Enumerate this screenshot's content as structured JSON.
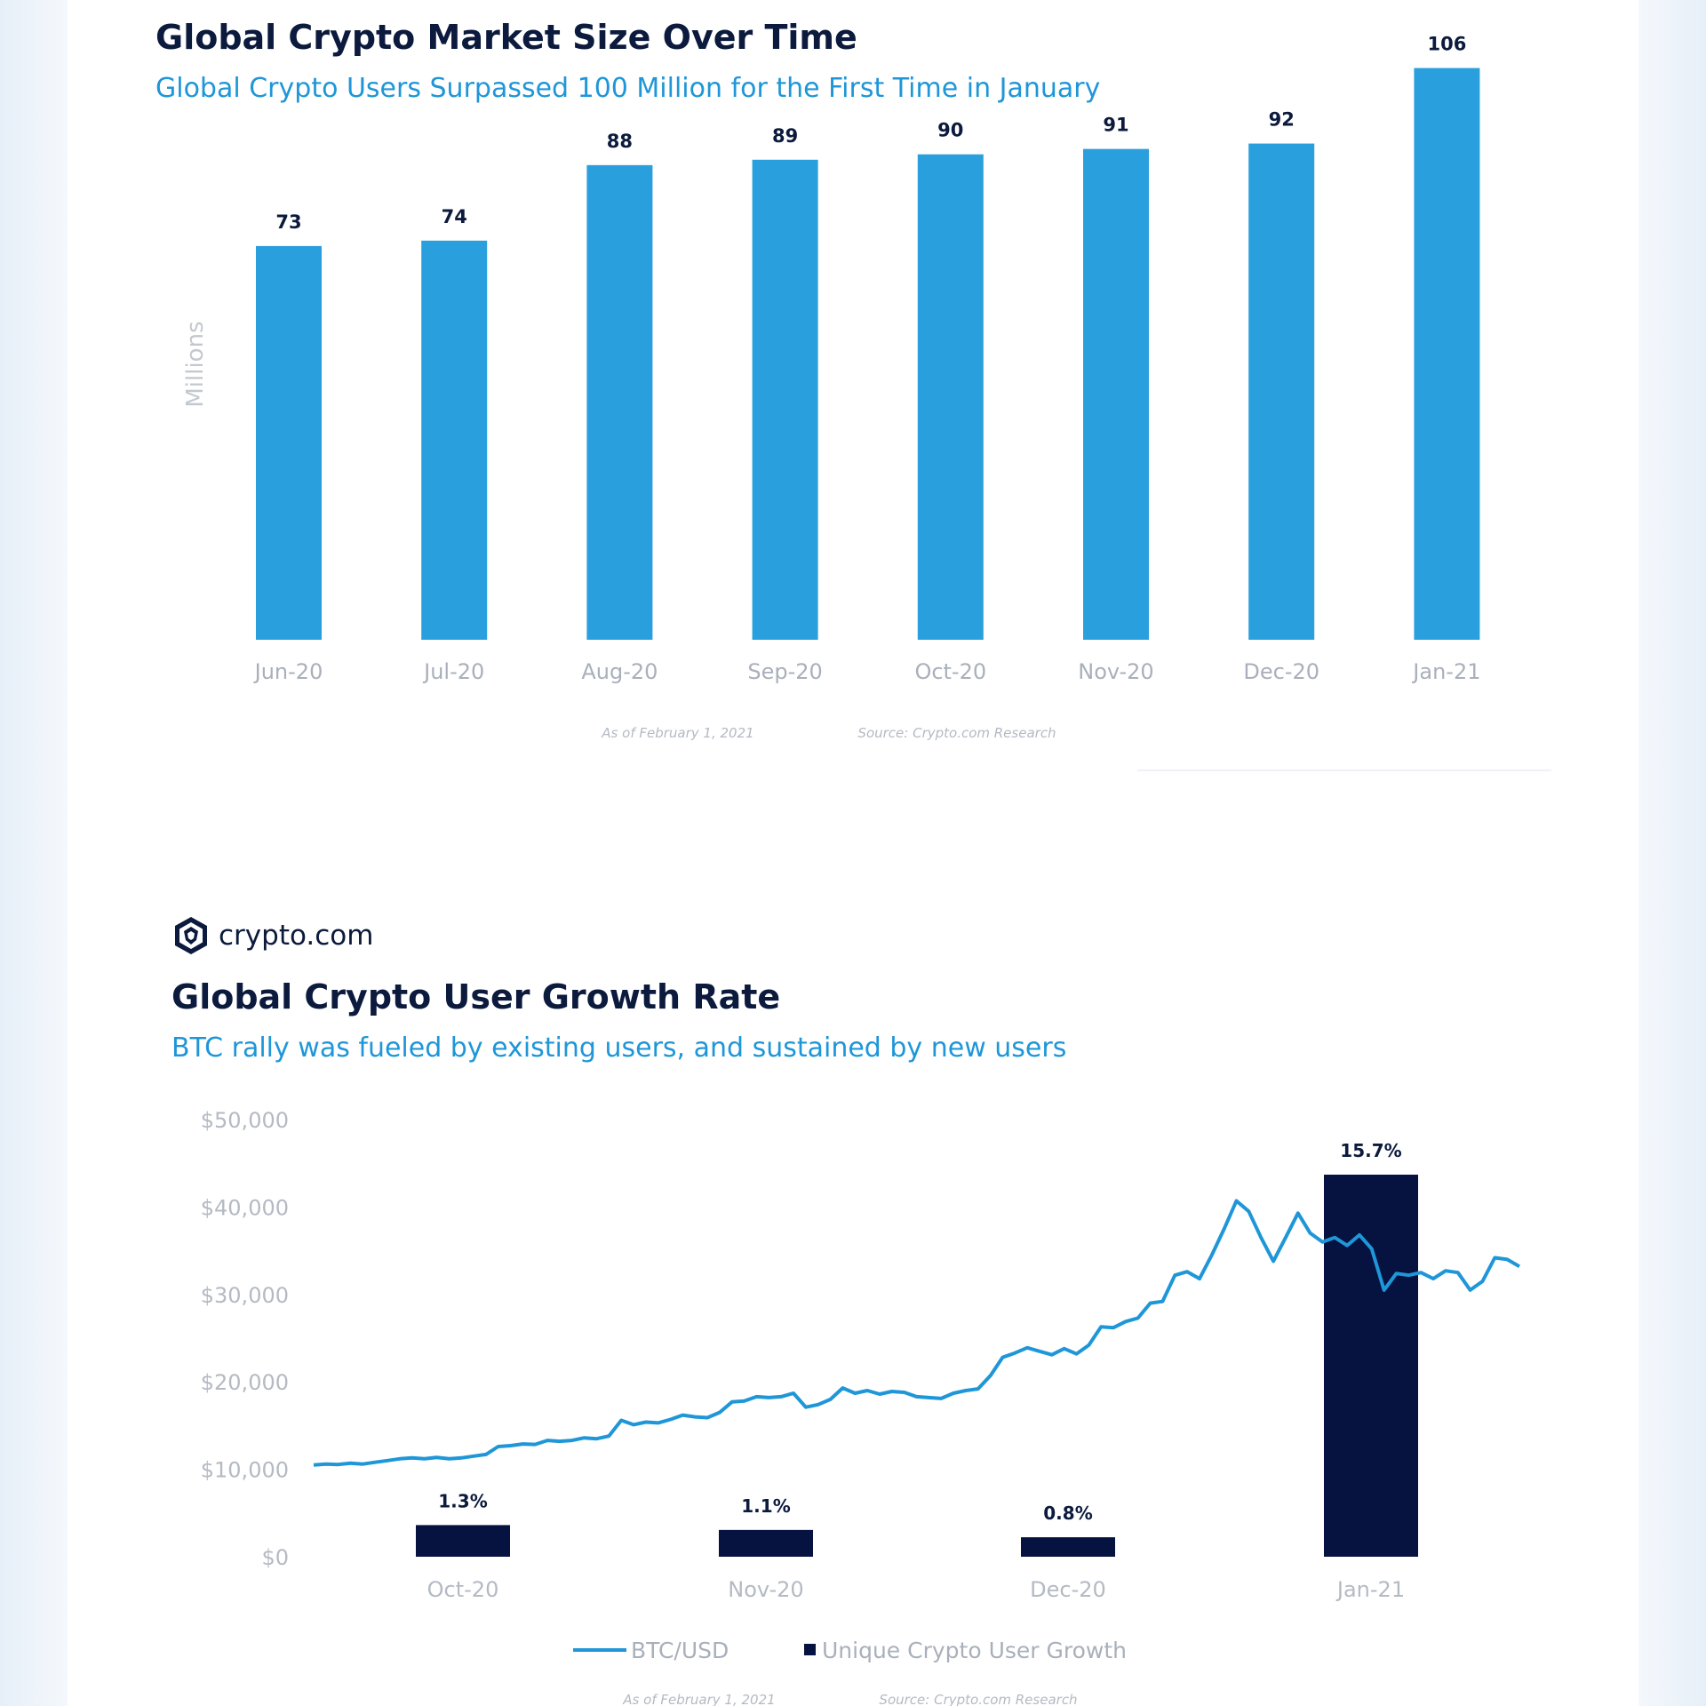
{
  "chart_data": [
    {
      "type": "bar",
      "title": "Global Crypto Market Size Over Time",
      "subtitle": "Global Crypto Users Surpassed 100 Million for the First Time in January",
      "ylabel": "Millions",
      "categories": [
        "Jun-20",
        "Jul-20",
        "Aug-20",
        "Sep-20",
        "Oct-20",
        "Nov-20",
        "Dec-20",
        "Jan-21"
      ],
      "values": [
        73,
        74,
        88,
        89,
        90,
        91,
        92,
        106
      ],
      "ylim": [
        0,
        110
      ],
      "grid": false,
      "bar_color": "#2a9fdd",
      "footnote_date": "As of February 1, 2021",
      "footnote_source": "Source: Crypto.com Research"
    },
    {
      "type": "bar+line",
      "brand": "crypto.com",
      "title": "Global Crypto User Growth Rate",
      "subtitle": "BTC rally was fueled by existing users, and sustained by new users",
      "y_ticks": [
        "$50,000",
        "$40,000",
        "$30,000",
        "$20,000",
        "$10,000",
        "$0"
      ],
      "ylim": [
        0,
        50000
      ],
      "categories": [
        "Oct-20",
        "Nov-20",
        "Dec-20",
        "Jan-21"
      ],
      "bar_series": {
        "name": "Unique Crypto User Growth",
        "values": [
          1.3,
          1.1,
          0.8,
          15.7
        ],
        "labels": [
          "1.3%",
          "1.1%",
          "0.8%",
          "15.7%"
        ],
        "color": "#06123f"
      },
      "line_series": {
        "name": "BTC/USD",
        "color": "#1e96d8",
        "values": [
          10500,
          10600,
          10550,
          10700,
          10600,
          10800,
          11000,
          11200,
          11300,
          11200,
          11350,
          11200,
          11300,
          11500,
          11700,
          12600,
          12700,
          12900,
          12850,
          13300,
          13200,
          13300,
          13600,
          13500,
          13800,
          15600,
          15100,
          15400,
          15300,
          15700,
          16200,
          16000,
          15900,
          16500,
          17700,
          17800,
          18300,
          18200,
          18300,
          18700,
          17100,
          17400,
          18000,
          19300,
          18700,
          19000,
          18600,
          18900,
          18800,
          18300,
          18200,
          18100,
          18700,
          19000,
          19200,
          20700,
          22800,
          23300,
          23900,
          23500,
          23100,
          23800,
          23200,
          24200,
          26300,
          26200,
          26900,
          27300,
          29000,
          29200,
          32200,
          32600,
          31800,
          34500,
          37500,
          40700,
          39500,
          36500,
          33800,
          36500,
          39300,
          37000,
          36000,
          36500,
          35600,
          36800,
          35200,
          30500,
          32400,
          32200,
          32500,
          31800,
          32700,
          32500,
          30500,
          31500,
          34200,
          34000,
          33200
        ]
      },
      "legend": [
        "BTC/USD",
        "Unique Crypto User Growth"
      ],
      "legend_position": "bottom",
      "footnote_date": "As of February 1, 2021",
      "footnote_source": "Source: Crypto.com Research"
    }
  ]
}
